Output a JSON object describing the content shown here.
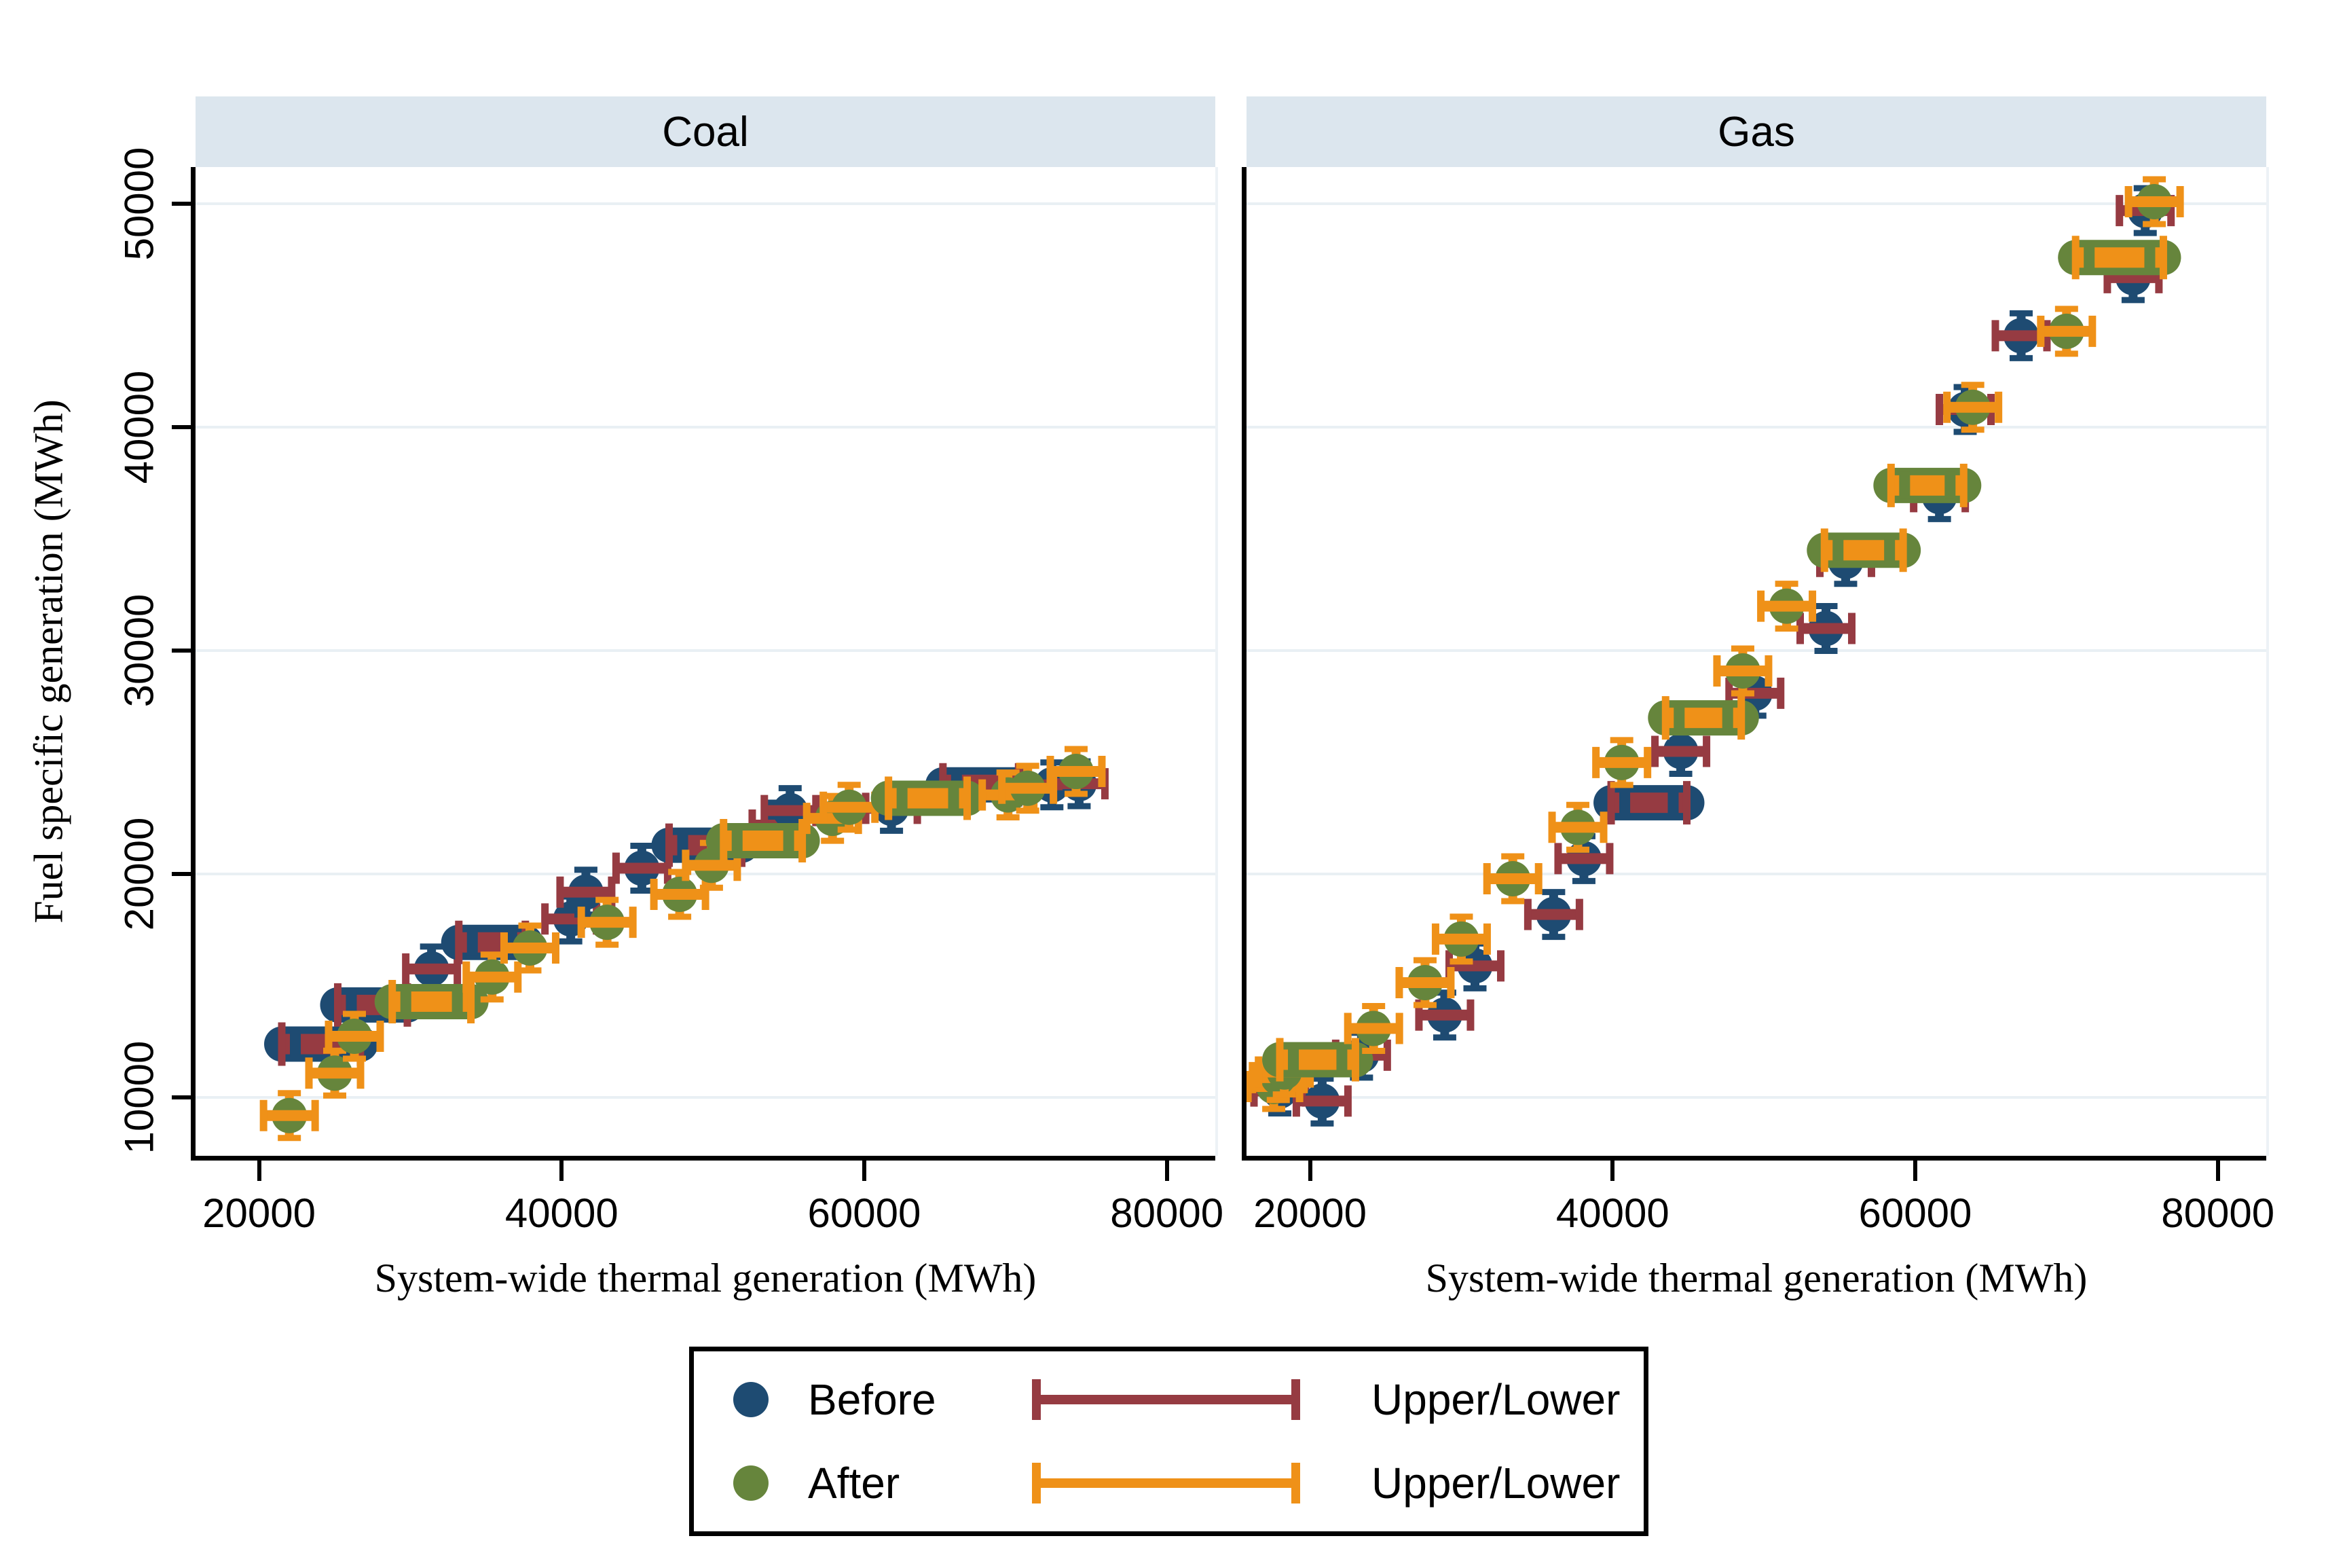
{
  "colors": {
    "navy": "#1e4b72",
    "green": "#66853c",
    "maroon": "#963b42",
    "orange": "#ef9118",
    "strip_bg": "#dce6ee",
    "gridline": "#e9f0f4",
    "text": "#000000"
  },
  "legend": {
    "entries": [
      {
        "label": "Before",
        "marker": "dot",
        "color_key": "navy"
      },
      {
        "label": "After",
        "marker": "dot",
        "color_key": "green"
      },
      {
        "label": "Upper/Lower",
        "marker": "errorbar",
        "color_key": "maroon"
      },
      {
        "label": "Upper/Lower",
        "marker": "errorbar",
        "color_key": "orange"
      }
    ]
  },
  "chart_data": [
    {
      "type": "scatter",
      "title": "Coal",
      "xlabel": "System-wide thermal generation (MWh)",
      "ylabel": "Fuel specific generation (MWh)",
      "xlim": [
        15800,
        83200
      ],
      "ylim": [
        7400,
        51650
      ],
      "xticks": [
        20000,
        40000,
        60000,
        80000
      ],
      "yticks": [
        10000,
        20000,
        30000,
        40000,
        50000
      ],
      "grid": "horizontal",
      "point_format": [
        "x",
        "y",
        "xerr_half_width"
      ],
      "series": [
        {
          "name": "Before",
          "marker": "circle",
          "marker_color_key": "navy",
          "error_color_key": "maroon",
          "points": [
            [
              24100,
              12400,
              2600
            ],
            [
              27500,
              14150,
              2300
            ],
            [
              31400,
              15760,
              300
            ],
            [
              35400,
              16950,
              2200
            ],
            [
              40600,
              18000,
              300
            ],
            [
              41600,
              19200,
              300
            ],
            [
              45300,
              20270,
              300
            ],
            [
              49500,
              21300,
              2400
            ],
            [
              54300,
              22200,
              250
            ],
            [
              55100,
              22850,
              250
            ],
            [
              61800,
              22950,
              300
            ],
            [
              67700,
              24000,
              2500
            ],
            [
              72400,
              24000,
              350
            ],
            [
              74200,
              24050,
              1500
            ]
          ]
        },
        {
          "name": "After",
          "marker": "circle",
          "marker_color_key": "green",
          "error_color_key": "orange",
          "points": [
            [
              22000,
              9200,
              400
            ],
            [
              25000,
              11100,
              450
            ],
            [
              26300,
              12750,
              500
            ],
            [
              31400,
              14300,
              2600
            ],
            [
              35400,
              15400,
              450
            ],
            [
              37900,
              16700,
              500
            ],
            [
              43000,
              17850,
              450
            ],
            [
              47800,
              19100,
              450
            ],
            [
              49900,
              20400,
              400
            ],
            [
              53300,
              21500,
              2600
            ],
            [
              57900,
              22500,
              450
            ],
            [
              59000,
              23000,
              450
            ],
            [
              64200,
              23400,
              2600
            ],
            [
              69500,
              23550,
              400
            ],
            [
              70800,
              23850,
              400
            ],
            [
              74000,
              24600,
              400
            ]
          ]
        }
      ]
    },
    {
      "type": "scatter",
      "title": "Gas",
      "xlabel": "System-wide thermal generation (MWh)",
      "ylabel": "Fuel specific generation (MWh)",
      "xlim": [
        15800,
        83200
      ],
      "ylim": [
        7400,
        51650
      ],
      "xticks": [
        20000,
        40000,
        60000,
        80000
      ],
      "yticks": [
        10000,
        20000,
        30000,
        40000,
        50000
      ],
      "grid": "horizontal",
      "point_format": [
        "x",
        "y",
        "xerr_half_width"
      ],
      "series": [
        {
          "name": "Before",
          "marker": "circle",
          "marker_color_key": "navy",
          "error_color_key": "maroon",
          "points": [
            [
              18000,
              10300,
              1200
            ],
            [
              20800,
              9850,
              400
            ],
            [
              23400,
              11900,
              400
            ],
            [
              28900,
              13700,
              400
            ],
            [
              30900,
              15900,
              400
            ],
            [
              36100,
              18200,
              400
            ],
            [
              38100,
              20700,
              400
            ],
            [
              42400,
              23200,
              2500
            ],
            [
              44500,
              25500,
              400
            ],
            [
              49400,
              28100,
              400
            ],
            [
              54100,
              31000,
              400
            ],
            [
              55400,
              34000,
              400
            ],
            [
              61600,
              36900,
              400
            ],
            [
              63300,
              40800,
              400
            ],
            [
              67000,
              44100,
              400
            ],
            [
              74400,
              46700,
              400
            ],
            [
              75200,
              49700,
              400
            ]
          ]
        },
        {
          "name": "After",
          "marker": "circle",
          "marker_color_key": "green",
          "error_color_key": "orange",
          "points": [
            [
              17600,
              10500,
              800
            ],
            [
              17900,
              10900,
              900
            ],
            [
              18300,
              11150,
              800
            ],
            [
              20500,
              11700,
              2500
            ],
            [
              24200,
              13100,
              450
            ],
            [
              27600,
              15150,
              450
            ],
            [
              30000,
              17100,
              450
            ],
            [
              33400,
              19800,
              450
            ],
            [
              37700,
              22100,
              450
            ],
            [
              40600,
              25000,
              500
            ],
            [
              46000,
              27000,
              2500
            ],
            [
              48600,
              29100,
              450
            ],
            [
              51500,
              32000,
              500
            ],
            [
              56600,
              34500,
              2600
            ],
            [
              60800,
              37400,
              2400
            ],
            [
              63800,
              40900,
              450
            ],
            [
              70000,
              44300,
              500
            ],
            [
              73500,
              47600,
              2900
            ],
            [
              75800,
              50100,
              450
            ]
          ]
        }
      ]
    }
  ]
}
